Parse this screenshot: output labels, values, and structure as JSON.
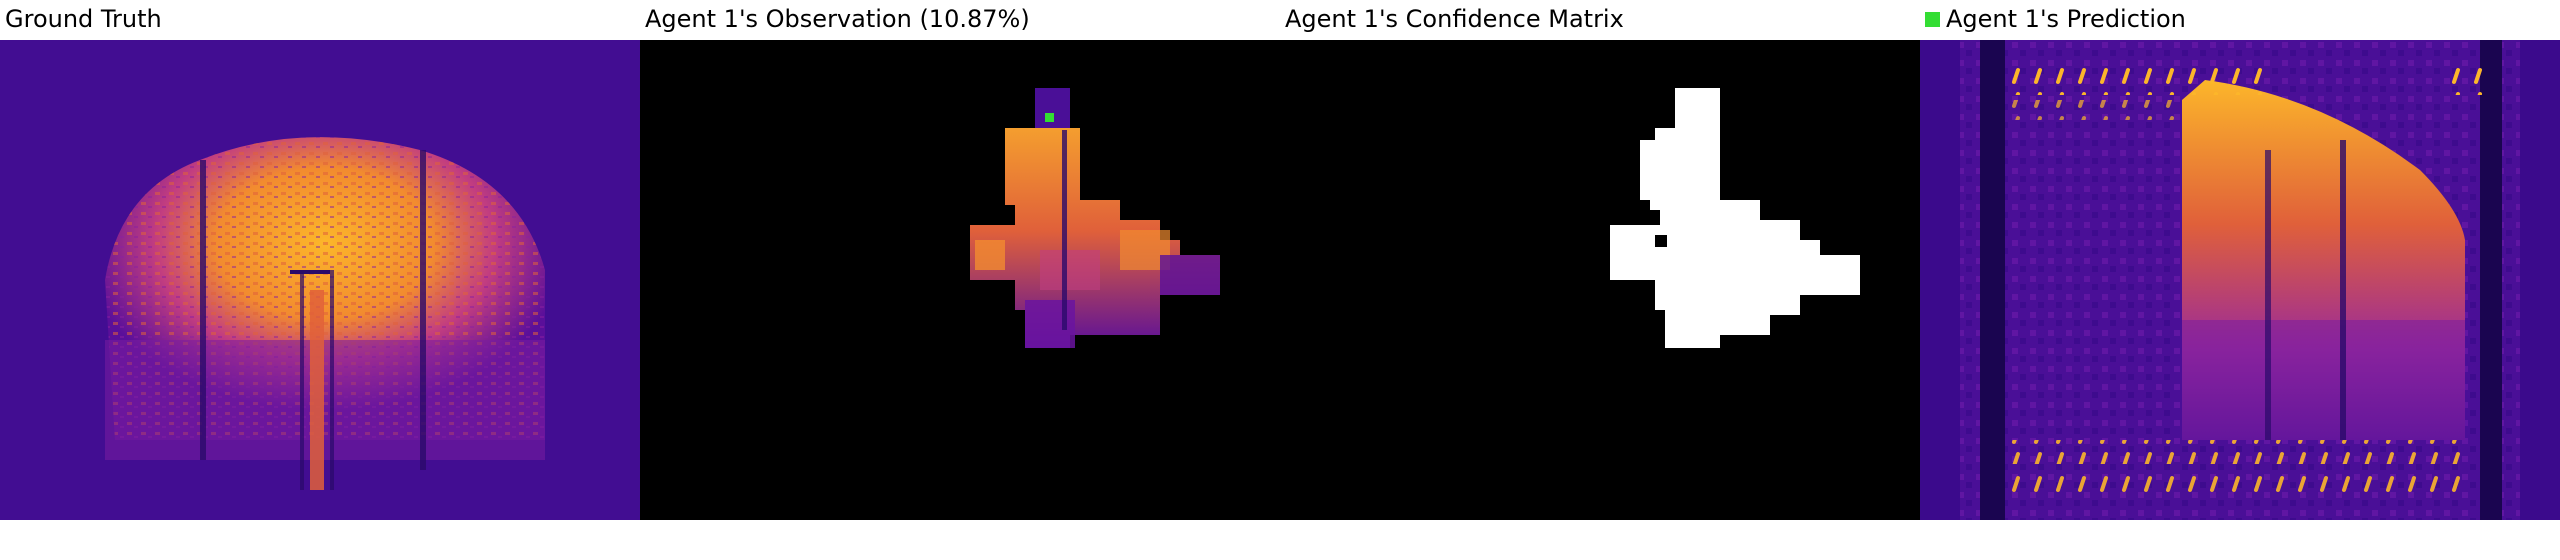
{
  "panels": [
    {
      "id": "ground-truth",
      "title": "Ground Truth"
    },
    {
      "id": "observation",
      "title": "Agent 1's Observation (10.87%)"
    },
    {
      "id": "confidence",
      "title": "Agent 1's Confidence Matrix"
    },
    {
      "id": "prediction",
      "title": "Agent 1's Prediction"
    }
  ],
  "legend": {
    "agent_marker_color": "#33dd33"
  },
  "colormap": {
    "name": "plasma",
    "low": "#3b0a8c",
    "mid": "#c23d80",
    "high": "#fcb62a",
    "background": "#000000",
    "confidence_known": "#ffffff"
  }
}
